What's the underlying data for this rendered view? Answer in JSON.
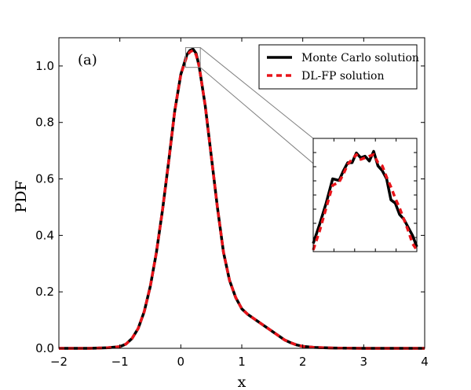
{
  "chart_data": {
    "type": "line",
    "panel_label": "(a)",
    "xlabel": "x",
    "ylabel": "PDF",
    "xlim": [
      -2,
      4
    ],
    "ylim": [
      0,
      1.1
    ],
    "xticks": [
      -2,
      -1,
      0,
      1,
      2,
      3,
      4
    ],
    "xtick_labels": [
      "−2",
      "−1",
      "0",
      "1",
      "2",
      "3",
      "4"
    ],
    "yticks": [
      0.0,
      0.2,
      0.4,
      0.6,
      0.8,
      1.0
    ],
    "ytick_labels": [
      "0.0",
      "0.2",
      "0.4",
      "0.6",
      "0.8",
      "1.0"
    ],
    "legend_position": "top-right",
    "x": [
      -2,
      -1.5,
      -1.2,
      -1.0,
      -0.9,
      -0.8,
      -0.7,
      -0.6,
      -0.5,
      -0.4,
      -0.3,
      -0.2,
      -0.1,
      0.0,
      0.1,
      0.15,
      0.2,
      0.25,
      0.3,
      0.4,
      0.5,
      0.6,
      0.7,
      0.8,
      0.9,
      1.0,
      1.1,
      1.2,
      1.3,
      1.4,
      1.5,
      1.6,
      1.7,
      1.8,
      1.9,
      2.0,
      2.2,
      2.5,
      3.0,
      3.5,
      4.0
    ],
    "series": [
      {
        "name": "Monte Carlo solution",
        "color": "#000000",
        "values": [
          0.0,
          0.0,
          0.002,
          0.006,
          0.015,
          0.035,
          0.07,
          0.13,
          0.22,
          0.34,
          0.49,
          0.66,
          0.84,
          0.97,
          1.04,
          1.055,
          1.06,
          1.045,
          1.0,
          0.86,
          0.68,
          0.5,
          0.34,
          0.24,
          0.18,
          0.14,
          0.12,
          0.105,
          0.09,
          0.075,
          0.06,
          0.045,
          0.03,
          0.02,
          0.012,
          0.007,
          0.003,
          0.001,
          0.0,
          0.0,
          0.0
        ]
      },
      {
        "name": "DL-FP solution",
        "color": "#e8141a",
        "values": [
          0.0,
          0.0,
          0.002,
          0.006,
          0.015,
          0.035,
          0.07,
          0.13,
          0.22,
          0.34,
          0.49,
          0.66,
          0.84,
          0.97,
          1.035,
          1.05,
          1.055,
          1.04,
          1.0,
          0.86,
          0.68,
          0.5,
          0.34,
          0.24,
          0.18,
          0.14,
          0.12,
          0.105,
          0.09,
          0.075,
          0.06,
          0.045,
          0.03,
          0.02,
          0.012,
          0.007,
          0.003,
          0.001,
          0.0,
          0.0,
          0.0
        ]
      }
    ],
    "inset": {
      "x_range": [
        0.08,
        0.32
      ],
      "y_range": [
        0.995,
        1.065
      ],
      "x": [
        0.08,
        0.095,
        0.11,
        0.125,
        0.14,
        0.15,
        0.16,
        0.17,
        0.18,
        0.19,
        0.2,
        0.21,
        0.22,
        0.23,
        0.24,
        0.25,
        0.26,
        0.27,
        0.28,
        0.29,
        0.3,
        0.31,
        0.32
      ],
      "series": [
        {
          "name": "Monte Carlo solution",
          "values": [
            1.0,
            1.012,
            1.025,
            1.04,
            1.039,
            1.045,
            1.05,
            1.05,
            1.056,
            1.053,
            1.054,
            1.051,
            1.057,
            1.048,
            1.045,
            1.04,
            1.027,
            1.025,
            1.018,
            1.015,
            1.01,
            1.005,
            0.998
          ]
        },
        {
          "name": "DL-FP solution",
          "values": [
            0.996,
            1.008,
            1.022,
            1.036,
            1.038,
            1.043,
            1.049,
            1.052,
            1.055,
            1.052,
            1.053,
            1.054,
            1.055,
            1.05,
            1.048,
            1.041,
            1.035,
            1.028,
            1.022,
            1.015,
            1.008,
            1.0,
            0.996
          ]
        }
      ]
    }
  }
}
